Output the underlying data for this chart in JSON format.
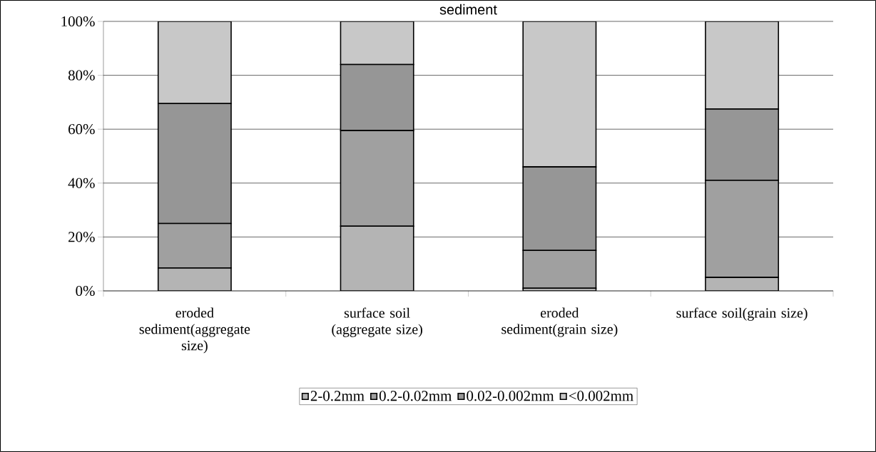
{
  "chart_data": {
    "type": "bar",
    "title": "sediment",
    "stacked": true,
    "categories": [
      "eroded sediment(aggregate size)",
      "surface soil (aggregate size)",
      "eroded sediment(grain size)",
      "surface soil(grain size)"
    ],
    "series": [
      {
        "name": "2-0.2mm",
        "color": "#b4b4b4",
        "values": [
          8.5,
          24,
          1,
          5
        ]
      },
      {
        "name": "0.2-0.02mm",
        "color": "#a0a0a0",
        "values": [
          16.5,
          35.5,
          14,
          36
        ]
      },
      {
        "name": "0.02-0.002mm",
        "color": "#969696",
        "values": [
          44.5,
          24.5,
          31,
          26.5
        ]
      },
      {
        "name": "<0.002mm",
        "color": "#c8c8c8",
        "values": [
          30.5,
          16,
          54,
          32.5
        ]
      }
    ],
    "ylim": [
      0,
      100
    ],
    "yticks": [
      {
        "value": 0,
        "label": "0%"
      },
      {
        "value": 20,
        "label": "20%"
      },
      {
        "value": 40,
        "label": "40%"
      },
      {
        "value": 60,
        "label": "60%"
      },
      {
        "value": 80,
        "label": "80%"
      },
      {
        "value": 100,
        "label": "100%"
      }
    ],
    "grid": "y",
    "legend": "bottom"
  }
}
